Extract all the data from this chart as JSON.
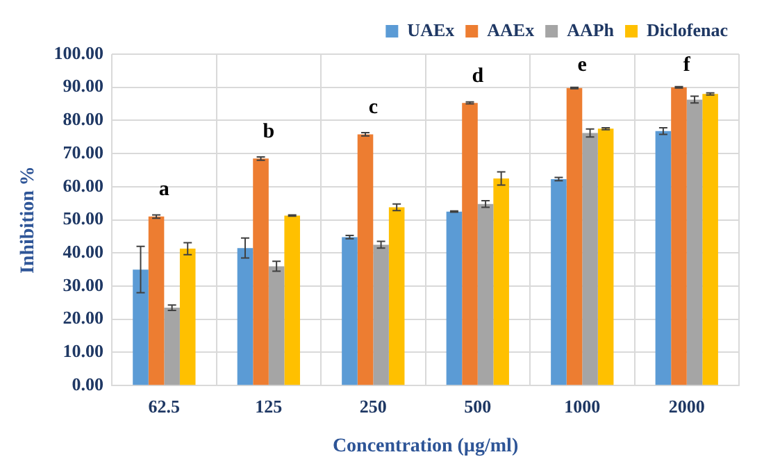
{
  "chart_data": {
    "type": "bar",
    "xlabel": "Concentration (µg/ml)",
    "ylabel": "Inhibition %",
    "categories": [
      "62.5",
      "125",
      "250",
      "500",
      "1000",
      "2000"
    ],
    "series": [
      {
        "name": "UAEx",
        "color": "#5b9bd5",
        "values": [
          35,
          41.5,
          44.8,
          52.5,
          62.3,
          76.8
        ],
        "errors": [
          7,
          3,
          0.5,
          0.2,
          0.5,
          1
        ]
      },
      {
        "name": "AAEx",
        "color": "#ed7d31",
        "values": [
          51,
          68.5,
          75.8,
          85.3,
          89.8,
          90
        ],
        "errors": [
          0.5,
          0.5,
          0.5,
          0.3,
          0.2,
          0.2
        ]
      },
      {
        "name": "AAPh",
        "color": "#a5a5a5",
        "values": [
          23.5,
          36,
          42.5,
          54.8,
          76.2,
          86.3
        ],
        "errors": [
          0.8,
          1.5,
          1,
          1,
          1.2,
          1
        ]
      },
      {
        "name": "Diclofenac",
        "color": "#ffc000",
        "values": [
          41.3,
          51.3,
          53.8,
          62.5,
          77.5,
          88
        ],
        "errors": [
          1.8,
          0.2,
          1,
          2,
          0.3,
          0.3
        ]
      }
    ],
    "ylim": [
      0,
      100
    ],
    "yticks": [
      {
        "value": 0,
        "label": "0.00"
      },
      {
        "value": 10,
        "label": "10.00"
      },
      {
        "value": 20,
        "label": "20.00"
      },
      {
        "value": 30,
        "label": "30.00"
      },
      {
        "value": 40,
        "label": "40.00"
      },
      {
        "value": 50,
        "label": "50.00"
      },
      {
        "value": 60,
        "label": "60.00"
      },
      {
        "value": 70,
        "label": "70.00"
      },
      {
        "value": 80,
        "label": "80.00"
      },
      {
        "value": 90,
        "label": "90.00"
      },
      {
        "value": 100,
        "label": "100.00"
      }
    ],
    "annotations": [
      "a",
      "b",
      "c",
      "d",
      "e",
      "f"
    ],
    "grid": true,
    "legend": "top"
  }
}
